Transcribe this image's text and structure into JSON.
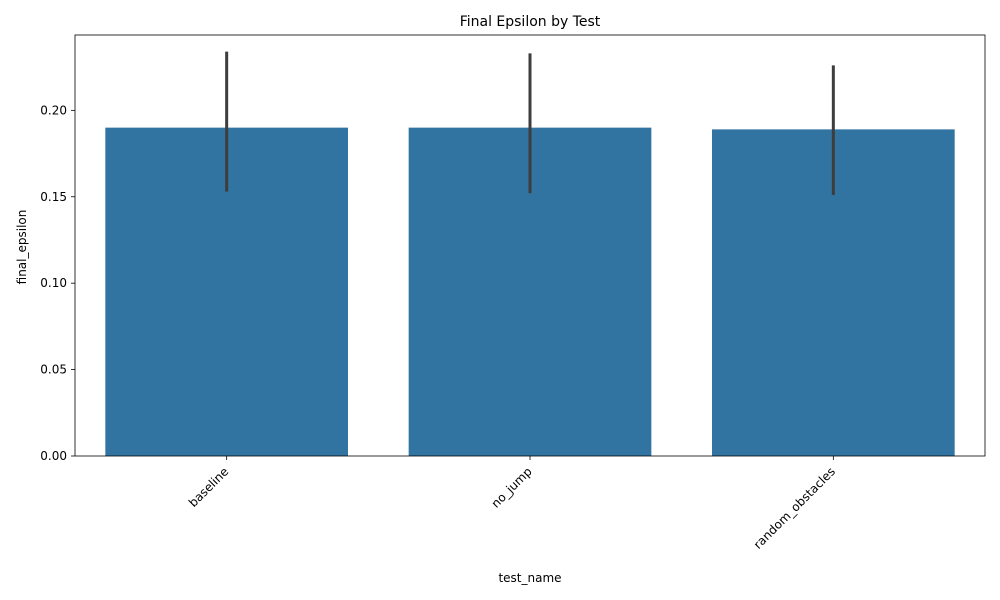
{
  "chart_data": {
    "type": "bar",
    "title": "Final Epsilon by Test",
    "xlabel": "test_name",
    "ylabel": "final_epsilon",
    "categories": [
      "baseline",
      "no_jump",
      "random_obstacles"
    ],
    "values": [
      0.19,
      0.19,
      0.189
    ],
    "error_low": [
      0.153,
      0.152,
      0.151
    ],
    "error_high": [
      0.234,
      0.233,
      0.226
    ],
    "ylim": [
      0,
      0.2436
    ],
    "yticks": [
      0.0,
      0.05,
      0.1,
      0.15,
      0.2
    ],
    "ytick_labels": [
      "0.00",
      "0.05",
      "0.10",
      "0.15",
      "0.20"
    ],
    "x_tick_rotation": 45,
    "grid": false,
    "legend": false,
    "bar_color": "#3274a1",
    "error_color": "#3d3d3d"
  }
}
